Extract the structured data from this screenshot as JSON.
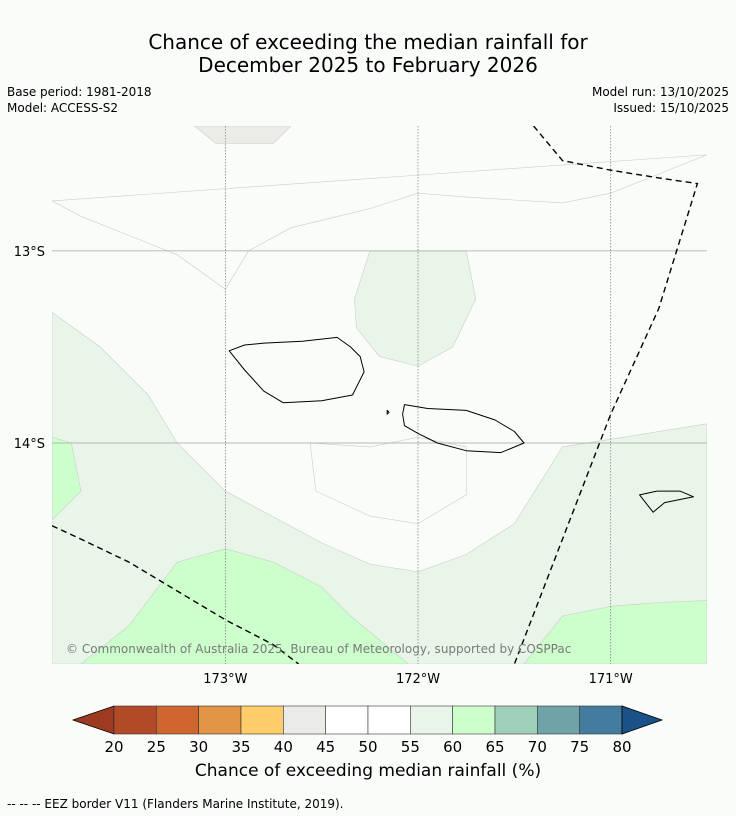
{
  "header": {
    "title_line1": "Chance of exceeding the median rainfall for",
    "title_line2": "December 2025 to February 2026",
    "base_period": "Base period: 1981-2018",
    "model": "Model: ACCESS-S2",
    "model_run": "Model run: 13/10/2025",
    "issued": "Issued: 15/10/2025"
  },
  "chart_data": {
    "type": "map",
    "xlabel": "",
    "ylabel": "",
    "lon_range": [
      -173.9,
      -170.5
    ],
    "lat_range": [
      -12.35,
      -15.15
    ],
    "lon_ticks": [
      -173,
      -172,
      -171
    ],
    "lon_tick_labels": [
      "173°W",
      "172°W",
      "171°W"
    ],
    "lat_ticks": [
      -13,
      -14
    ],
    "lat_tick_labels": [
      "13°S",
      "14°S"
    ],
    "grid": true,
    "copyright": "© Commonwealth of Australia 2025, Bureau of Meteorology, supported by COSPPac",
    "colorbar": {
      "title": "Chance of exceeding median rainfall (%)",
      "boundaries": [
        20,
        25,
        30,
        35,
        40,
        45,
        50,
        55,
        60,
        65,
        70,
        75,
        80
      ],
      "tick_labels": [
        "20",
        "25",
        "30",
        "35",
        "40",
        "45",
        "50",
        "55",
        "60",
        "65",
        "70",
        "75",
        "80"
      ],
      "colors": [
        "#b24a28",
        "#cf6630",
        "#e29547",
        "#fdcd69",
        "#ebebe7",
        "#ffffff",
        "#ffffff",
        "#e8f5e8",
        "#ccffcc",
        "#9ecfb8",
        "#6fa3a8",
        "#437c9e"
      ],
      "under_color": "#9e3922",
      "over_color": "#1b5088",
      "extend": "both"
    },
    "regions": [
      {
        "range": "40-45",
        "color": "#ebebe7",
        "points": [
          [
            -173.16,
            -12.35
          ],
          [
            -172.66,
            -12.35
          ],
          [
            -172.75,
            -12.44
          ],
          [
            -173.05,
            -12.44
          ]
        ]
      },
      {
        "range": "55-60",
        "color": "#e8f5e8",
        "points": [
          [
            -172.25,
            -13.0
          ],
          [
            -171.75,
            -13.0
          ],
          [
            -171.7,
            -13.25
          ],
          [
            -171.82,
            -13.5
          ],
          [
            -172.0,
            -13.6
          ],
          [
            -172.2,
            -13.55
          ],
          [
            -172.32,
            -13.4
          ],
          [
            -172.33,
            -13.25
          ]
        ]
      },
      {
        "range": "55-60",
        "color": "#e8f5e8",
        "points": [
          [
            -173.9,
            -13.32
          ],
          [
            -173.65,
            -13.5
          ],
          [
            -173.4,
            -13.75
          ],
          [
            -173.25,
            -14.0
          ],
          [
            -173.0,
            -14.25
          ],
          [
            -172.5,
            -14.52
          ],
          [
            -172.25,
            -14.63
          ],
          [
            -172.0,
            -14.67
          ],
          [
            -171.75,
            -14.58
          ],
          [
            -171.5,
            -14.42
          ],
          [
            -171.25,
            -14.02
          ],
          [
            -170.5,
            -13.9
          ],
          [
            -170.5,
            -15.15
          ],
          [
            -173.9,
            -15.15
          ]
        ]
      },
      {
        "range": "60-65",
        "color": "#ccffcc",
        "points": [
          [
            -173.9,
            -13.97
          ],
          [
            -173.8,
            -14.0
          ],
          [
            -173.75,
            -14.25
          ],
          [
            -173.9,
            -14.4
          ]
        ]
      },
      {
        "range": "60-65",
        "color": "#ccffcc",
        "points": [
          [
            -173.75,
            -15.15
          ],
          [
            -173.5,
            -14.95
          ],
          [
            -173.25,
            -14.62
          ],
          [
            -173.0,
            -14.55
          ],
          [
            -172.75,
            -14.62
          ],
          [
            -172.5,
            -14.75
          ],
          [
            -172.35,
            -14.9
          ],
          [
            -172.05,
            -15.15
          ]
        ]
      },
      {
        "range": "60-65",
        "color": "#ccffcc",
        "points": [
          [
            -171.45,
            -15.15
          ],
          [
            -171.25,
            -14.9
          ],
          [
            -171.0,
            -14.85
          ],
          [
            -170.75,
            -14.83
          ],
          [
            -170.5,
            -14.82
          ],
          [
            -170.5,
            -15.15
          ]
        ]
      },
      {
        "range": "50-55 outline",
        "color": "none",
        "points": [
          [
            -172.25,
            -14.02
          ],
          [
            -172.0,
            -13.97
          ],
          [
            -171.75,
            -14.02
          ],
          [
            -171.75,
            -14.27
          ],
          [
            -172.0,
            -14.42
          ],
          [
            -172.25,
            -14.38
          ],
          [
            -172.53,
            -14.25
          ],
          [
            -172.56,
            -14.0
          ]
        ]
      },
      {
        "range": "45-50 outline",
        "color": "none",
        "points": [
          [
            -173.9,
            -12.74
          ],
          [
            -173.75,
            -12.82
          ],
          [
            -173.5,
            -12.92
          ],
          [
            -173.25,
            -13.02
          ],
          [
            -173.0,
            -13.2
          ],
          [
            -172.88,
            -13.0
          ],
          [
            -172.66,
            -12.88
          ],
          [
            -172.25,
            -12.78
          ],
          [
            -172.0,
            -12.7
          ],
          [
            -171.75,
            -12.72
          ],
          [
            -171.25,
            -12.75
          ],
          [
            -171.0,
            -12.7
          ],
          [
            -170.75,
            -12.6
          ],
          [
            -170.5,
            -12.5
          ]
        ]
      }
    ],
    "eez_boundary": [
      [
        [
          -171.4,
          -12.35
        ],
        [
          -171.25,
          -12.53
        ],
        [
          -171.0,
          -12.58
        ],
        [
          -170.75,
          -12.62
        ],
        [
          -170.55,
          -12.65
        ],
        [
          -170.75,
          -13.3
        ],
        [
          -171.0,
          -13.85
        ],
        [
          -171.25,
          -14.5
        ],
        [
          -171.5,
          -15.15
        ]
      ],
      [
        [
          -173.9,
          -14.43
        ],
        [
          -173.75,
          -14.5
        ],
        [
          -173.5,
          -14.62
        ],
        [
          -173.25,
          -14.77
        ],
        [
          -173.0,
          -14.92
        ],
        [
          -172.75,
          -15.05
        ],
        [
          -172.62,
          -15.15
        ]
      ]
    ],
    "islands": [
      {
        "name": "Savai'i",
        "points": [
          [
            -172.8,
            -13.48
          ],
          [
            -172.6,
            -13.47
          ],
          [
            -172.42,
            -13.45
          ],
          [
            -172.35,
            -13.5
          ],
          [
            -172.3,
            -13.55
          ],
          [
            -172.28,
            -13.63
          ],
          [
            -172.34,
            -13.75
          ],
          [
            -172.5,
            -13.78
          ],
          [
            -172.7,
            -13.79
          ],
          [
            -172.8,
            -13.73
          ],
          [
            -172.9,
            -13.62
          ],
          [
            -172.98,
            -13.52
          ],
          [
            -172.9,
            -13.49
          ]
        ]
      },
      {
        "name": "Upolu",
        "points": [
          [
            -172.07,
            -13.8
          ],
          [
            -171.95,
            -13.82
          ],
          [
            -171.75,
            -13.83
          ],
          [
            -171.6,
            -13.88
          ],
          [
            -171.5,
            -13.94
          ],
          [
            -171.45,
            -14.0
          ],
          [
            -171.57,
            -14.05
          ],
          [
            -171.75,
            -14.04
          ],
          [
            -171.9,
            -14.0
          ],
          [
            -172.0,
            -13.95
          ],
          [
            -172.07,
            -13.91
          ],
          [
            -172.08,
            -13.85
          ]
        ]
      },
      {
        "name": "Tutuila",
        "points": [
          [
            -170.85,
            -14.27
          ],
          [
            -170.76,
            -14.25
          ],
          [
            -170.64,
            -14.25
          ],
          [
            -170.57,
            -14.28
          ],
          [
            -170.72,
            -14.31
          ],
          [
            -170.78,
            -14.36
          ]
        ]
      },
      {
        "name": "Manono",
        "points": [
          [
            -172.16,
            -13.83
          ],
          [
            -172.15,
            -13.84
          ],
          [
            -172.16,
            -13.85
          ]
        ]
      }
    ]
  },
  "footer": {
    "eez_legend": "--  --  -- EEZ border V11 (Flanders Marine Institute, 2019)."
  }
}
